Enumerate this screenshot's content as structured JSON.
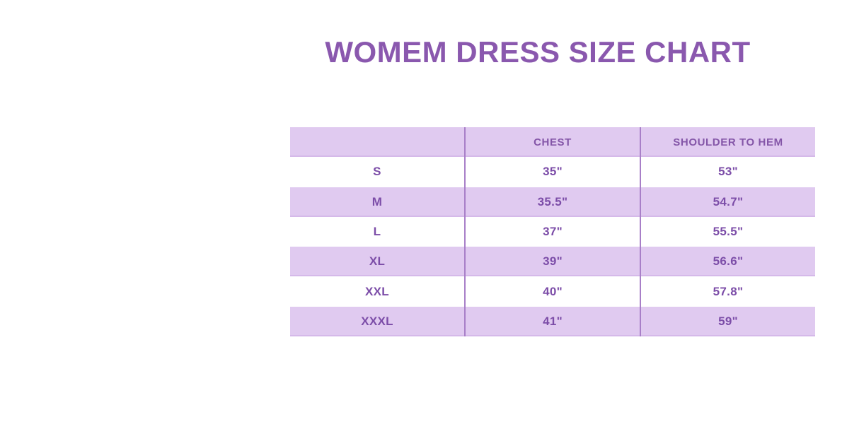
{
  "title": "WOMEM DRESS SIZE CHART",
  "colors": {
    "title_text": "#8A58AE",
    "row_alt_background": "#E0CAF0",
    "row_background": "#FFFFFF",
    "divider_line": "#A87FC8",
    "cell_text": "#7C4DA8"
  },
  "chart_data": {
    "type": "table",
    "title": "WOMEM DRESS SIZE CHART",
    "columns": [
      "",
      "CHEST",
      "SHOULDER TO HEM"
    ],
    "rows": [
      [
        "S",
        "35\"",
        "53\""
      ],
      [
        "M",
        "35.5\"",
        "54.7\""
      ],
      [
        "L",
        "37\"",
        "55.5\""
      ],
      [
        "XL",
        "39\"",
        "56.6\""
      ],
      [
        "XXL",
        "40\"",
        "57.8\""
      ],
      [
        "XXXL",
        "41\"",
        "59\""
      ]
    ]
  }
}
